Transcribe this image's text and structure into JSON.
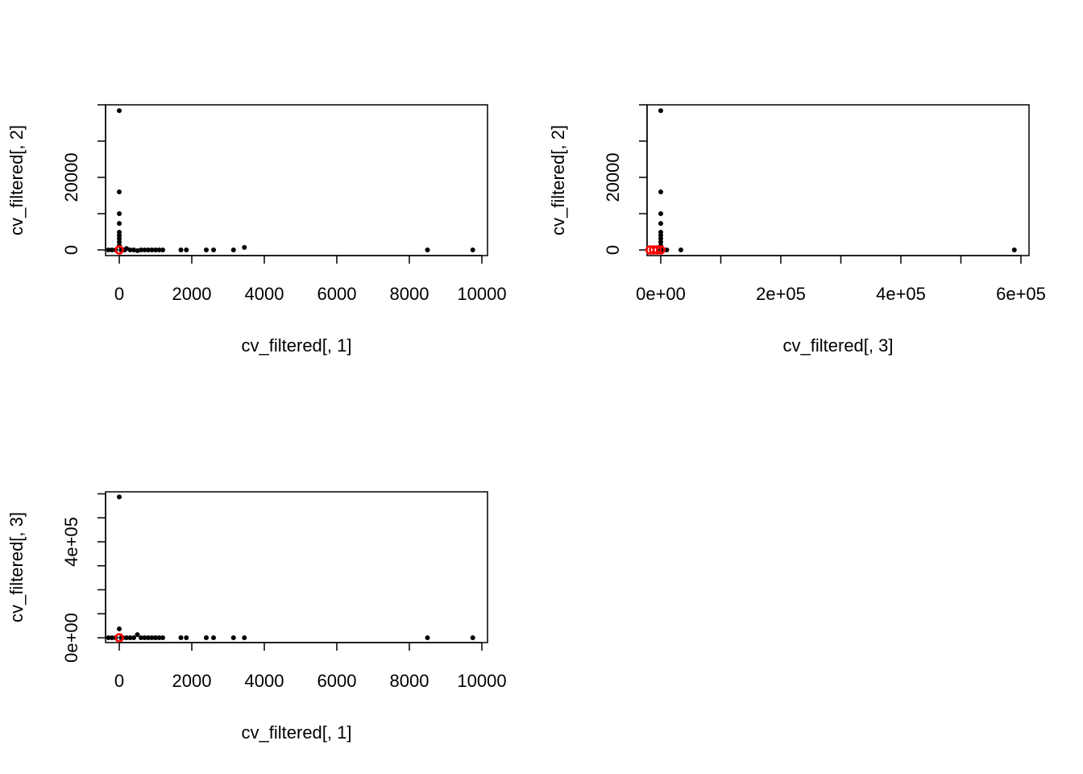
{
  "chart_data": [
    {
      "type": "scatter",
      "x_label": "cv_filtered[, 1]",
      "y_label": "cv_filtered[, 2]",
      "xlim": [
        -378,
        10156
      ],
      "ylim": [
        -1556,
        40000
      ],
      "xticks": [
        0,
        2000,
        4000,
        6000,
        8000,
        10000
      ],
      "xticks_unlabeled": [],
      "yticks": [
        0,
        20000
      ],
      "yticks_unlabeled": [
        10000,
        30000,
        40000
      ],
      "series": [
        {
          "color": "#000000",
          "marker": "dot",
          "x": [
            0,
            0,
            0,
            0,
            0,
            0,
            0,
            0,
            0,
            -300,
            -200,
            -100,
            50,
            100,
            150,
            200,
            300,
            400,
            500,
            600,
            700,
            800,
            900,
            1000,
            1100,
            1200,
            1700,
            1850,
            2400,
            2600,
            3150,
            3450,
            8500,
            9750
          ],
          "values": [
            38400,
            16000,
            10000,
            7300,
            4900,
            4000,
            3100,
            2200,
            1200,
            0,
            0,
            0,
            0,
            0,
            0,
            400,
            0,
            0,
            -200,
            0,
            0,
            0,
            0,
            0,
            0,
            0,
            0,
            0,
            0,
            0,
            0,
            700,
            0,
            0
          ]
        },
        {
          "color": "#ff0000",
          "marker": "ring",
          "x": [
            0
          ],
          "values": [
            0
          ]
        }
      ]
    },
    {
      "type": "scatter",
      "x_label": "cv_filtered[, 3]",
      "y_label": "cv_filtered[, 2]",
      "xlim": [
        -22819,
        613423
      ],
      "ylim": [
        -1556,
        40000
      ],
      "xticks": [
        {
          "value": 0,
          "label": "0e+00"
        },
        {
          "value": 200000,
          "label": "2e+05"
        },
        {
          "value": 400000,
          "label": "4e+05"
        },
        {
          "value": 600000,
          "label": "6e+05"
        }
      ],
      "xticks_unlabeled": [
        100000,
        300000,
        500000
      ],
      "yticks": [
        0,
        20000
      ],
      "yticks_unlabeled": [
        10000,
        30000,
        40000
      ],
      "series": [
        {
          "color": "#000000",
          "marker": "dot",
          "x": [
            0,
            0,
            0,
            0,
            0,
            0,
            0,
            0,
            0,
            0,
            5000,
            10000,
            33500,
            589000
          ],
          "values": [
            38400,
            16000,
            10000,
            7300,
            4900,
            4000,
            3100,
            2200,
            1200,
            0,
            0,
            0,
            0,
            0
          ]
        },
        {
          "color": "#ff0000",
          "marker": "ring",
          "x": [
            -18000,
            -12000,
            -6000,
            0
          ],
          "values": [
            0,
            0,
            0,
            0
          ]
        }
      ]
    },
    {
      "type": "scatter",
      "x_label": "cv_filtered[, 1]",
      "y_label": "cv_filtered[, 3]",
      "xlim": [
        -378,
        10156
      ],
      "ylim": [
        -20168,
        608403
      ],
      "xticks": [
        0,
        2000,
        4000,
        6000,
        8000,
        10000
      ],
      "xticks_unlabeled": [],
      "yticks": [
        {
          "value": 0,
          "label": "0e+00"
        },
        {
          "value": 400000,
          "label": "4e+05"
        }
      ],
      "yticks_unlabeled": [
        100000,
        200000,
        300000,
        500000,
        600000
      ],
      "series": [
        {
          "color": "#000000",
          "marker": "dot",
          "x": [
            0,
            0,
            500,
            -300,
            -200,
            -100,
            50,
            100,
            200,
            300,
            400,
            600,
            700,
            800,
            900,
            1000,
            1100,
            1200,
            1700,
            1850,
            2400,
            2600,
            3150,
            3450,
            8500,
            9750
          ],
          "values": [
            587000,
            37000,
            13000,
            0,
            0,
            0,
            0,
            0,
            0,
            0,
            0,
            0,
            0,
            0,
            0,
            0,
            0,
            0,
            0,
            0,
            0,
            0,
            0,
            0,
            0,
            0
          ]
        },
        {
          "color": "#ff0000",
          "marker": "ring",
          "x": [
            0
          ],
          "values": [
            0
          ]
        }
      ]
    }
  ]
}
